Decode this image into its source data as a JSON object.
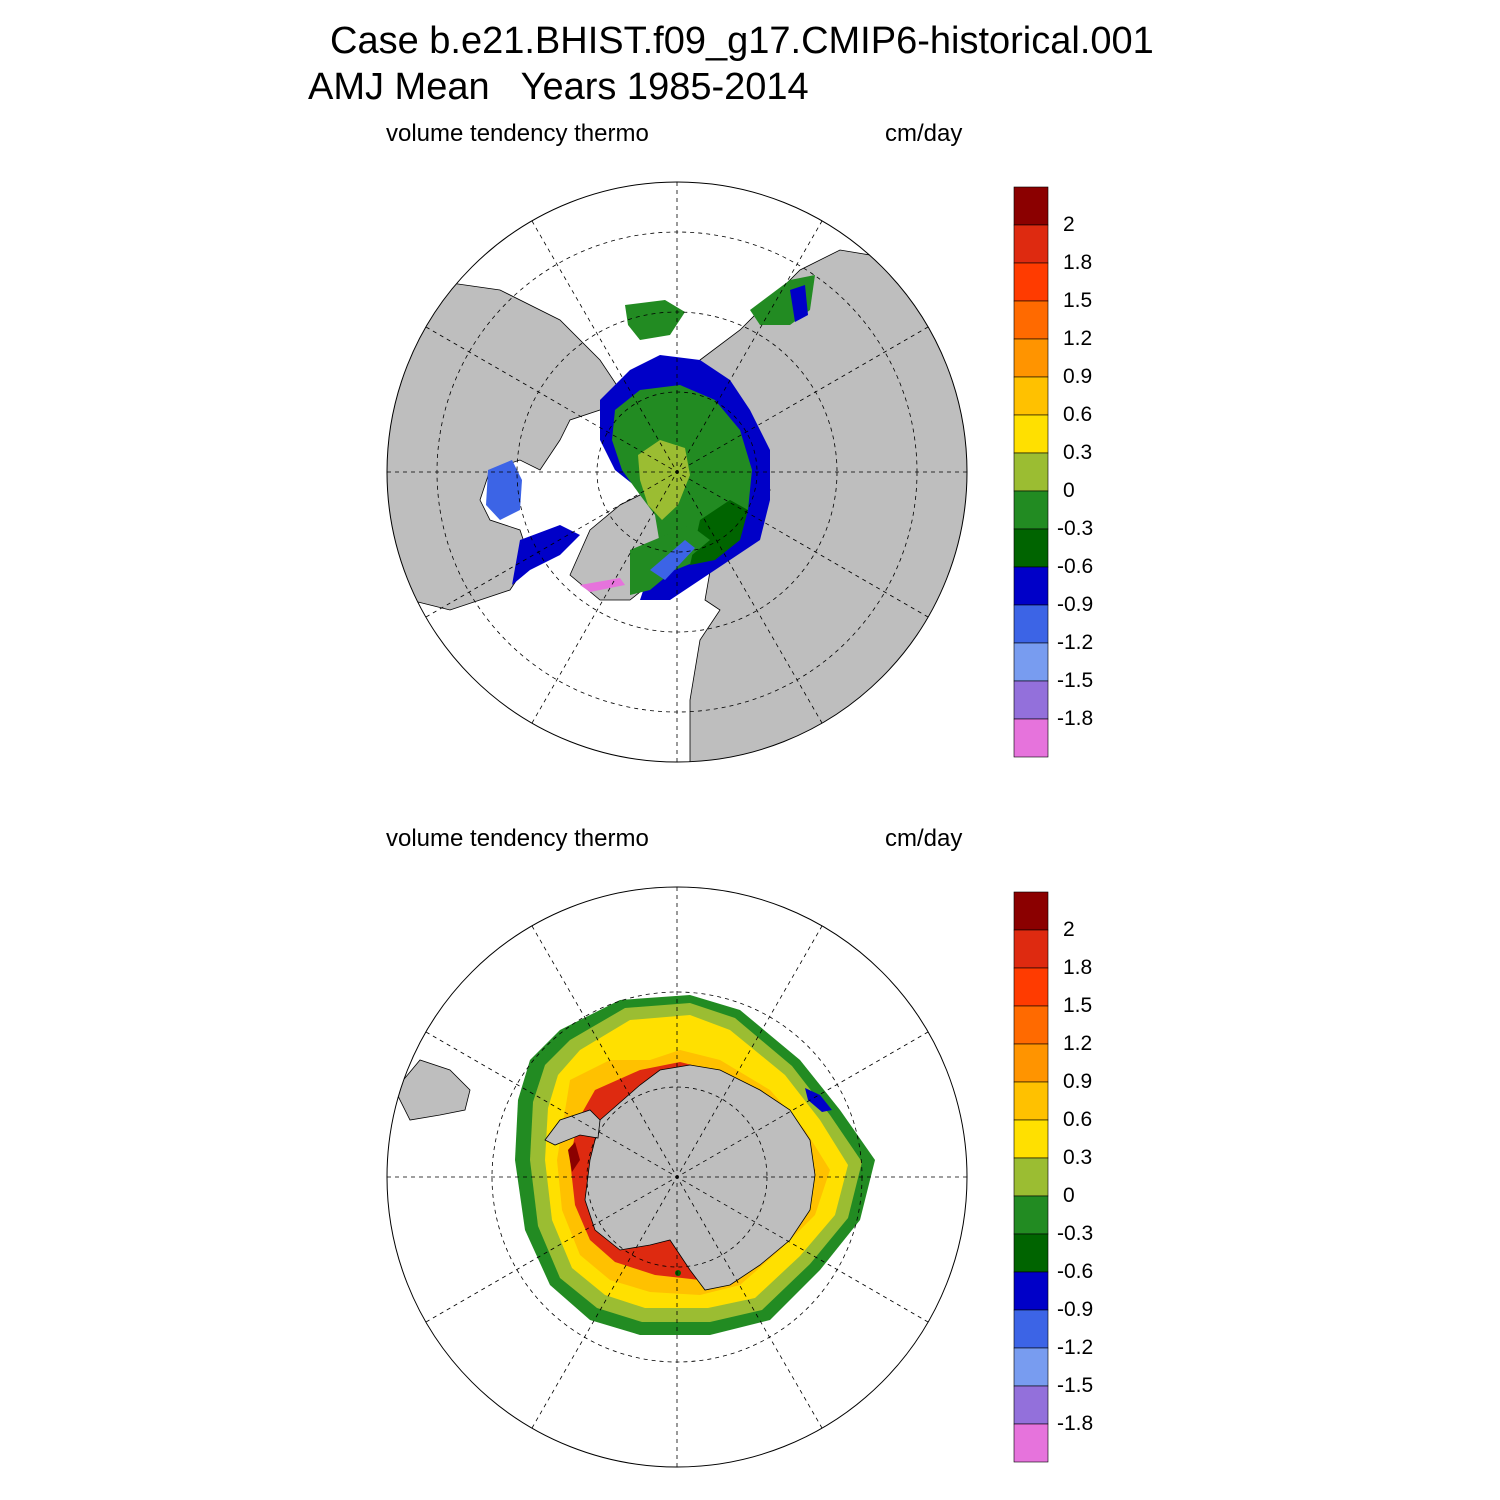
{
  "header": {
    "line1": "Case b.e21.BHIST.f09_g17.CMIP6-historical.001",
    "line2": "AMJ Mean   Years 1985-2014"
  },
  "panels": [
    {
      "id": "north",
      "variable_label": "volume tendency thermo",
      "units_label": "cm/day"
    },
    {
      "id": "south",
      "variable_label": "volume tendency thermo",
      "units_label": "cm/day"
    }
  ],
  "colorbar": {
    "labels": [
      "2",
      "1.8",
      "1.5",
      "1.2",
      "0.9",
      "0.6",
      "0.3",
      "0",
      "-0.3",
      "-0.6",
      "-0.9",
      "-1.2",
      "-1.5",
      "-1.8"
    ],
    "colors": [
      "#8b0000",
      "#de2a10",
      "#ff3b00",
      "#ff6a00",
      "#ff9400",
      "#ffc100",
      "#ffe000",
      "#9bbd32",
      "#228b22",
      "#006400",
      "#0000c8",
      "#3c64e6",
      "#789cf0",
      "#9370db",
      "#e673dc"
    ]
  },
  "colors": {
    "land": "#bebebe",
    "ocean": "#ffffff"
  }
}
